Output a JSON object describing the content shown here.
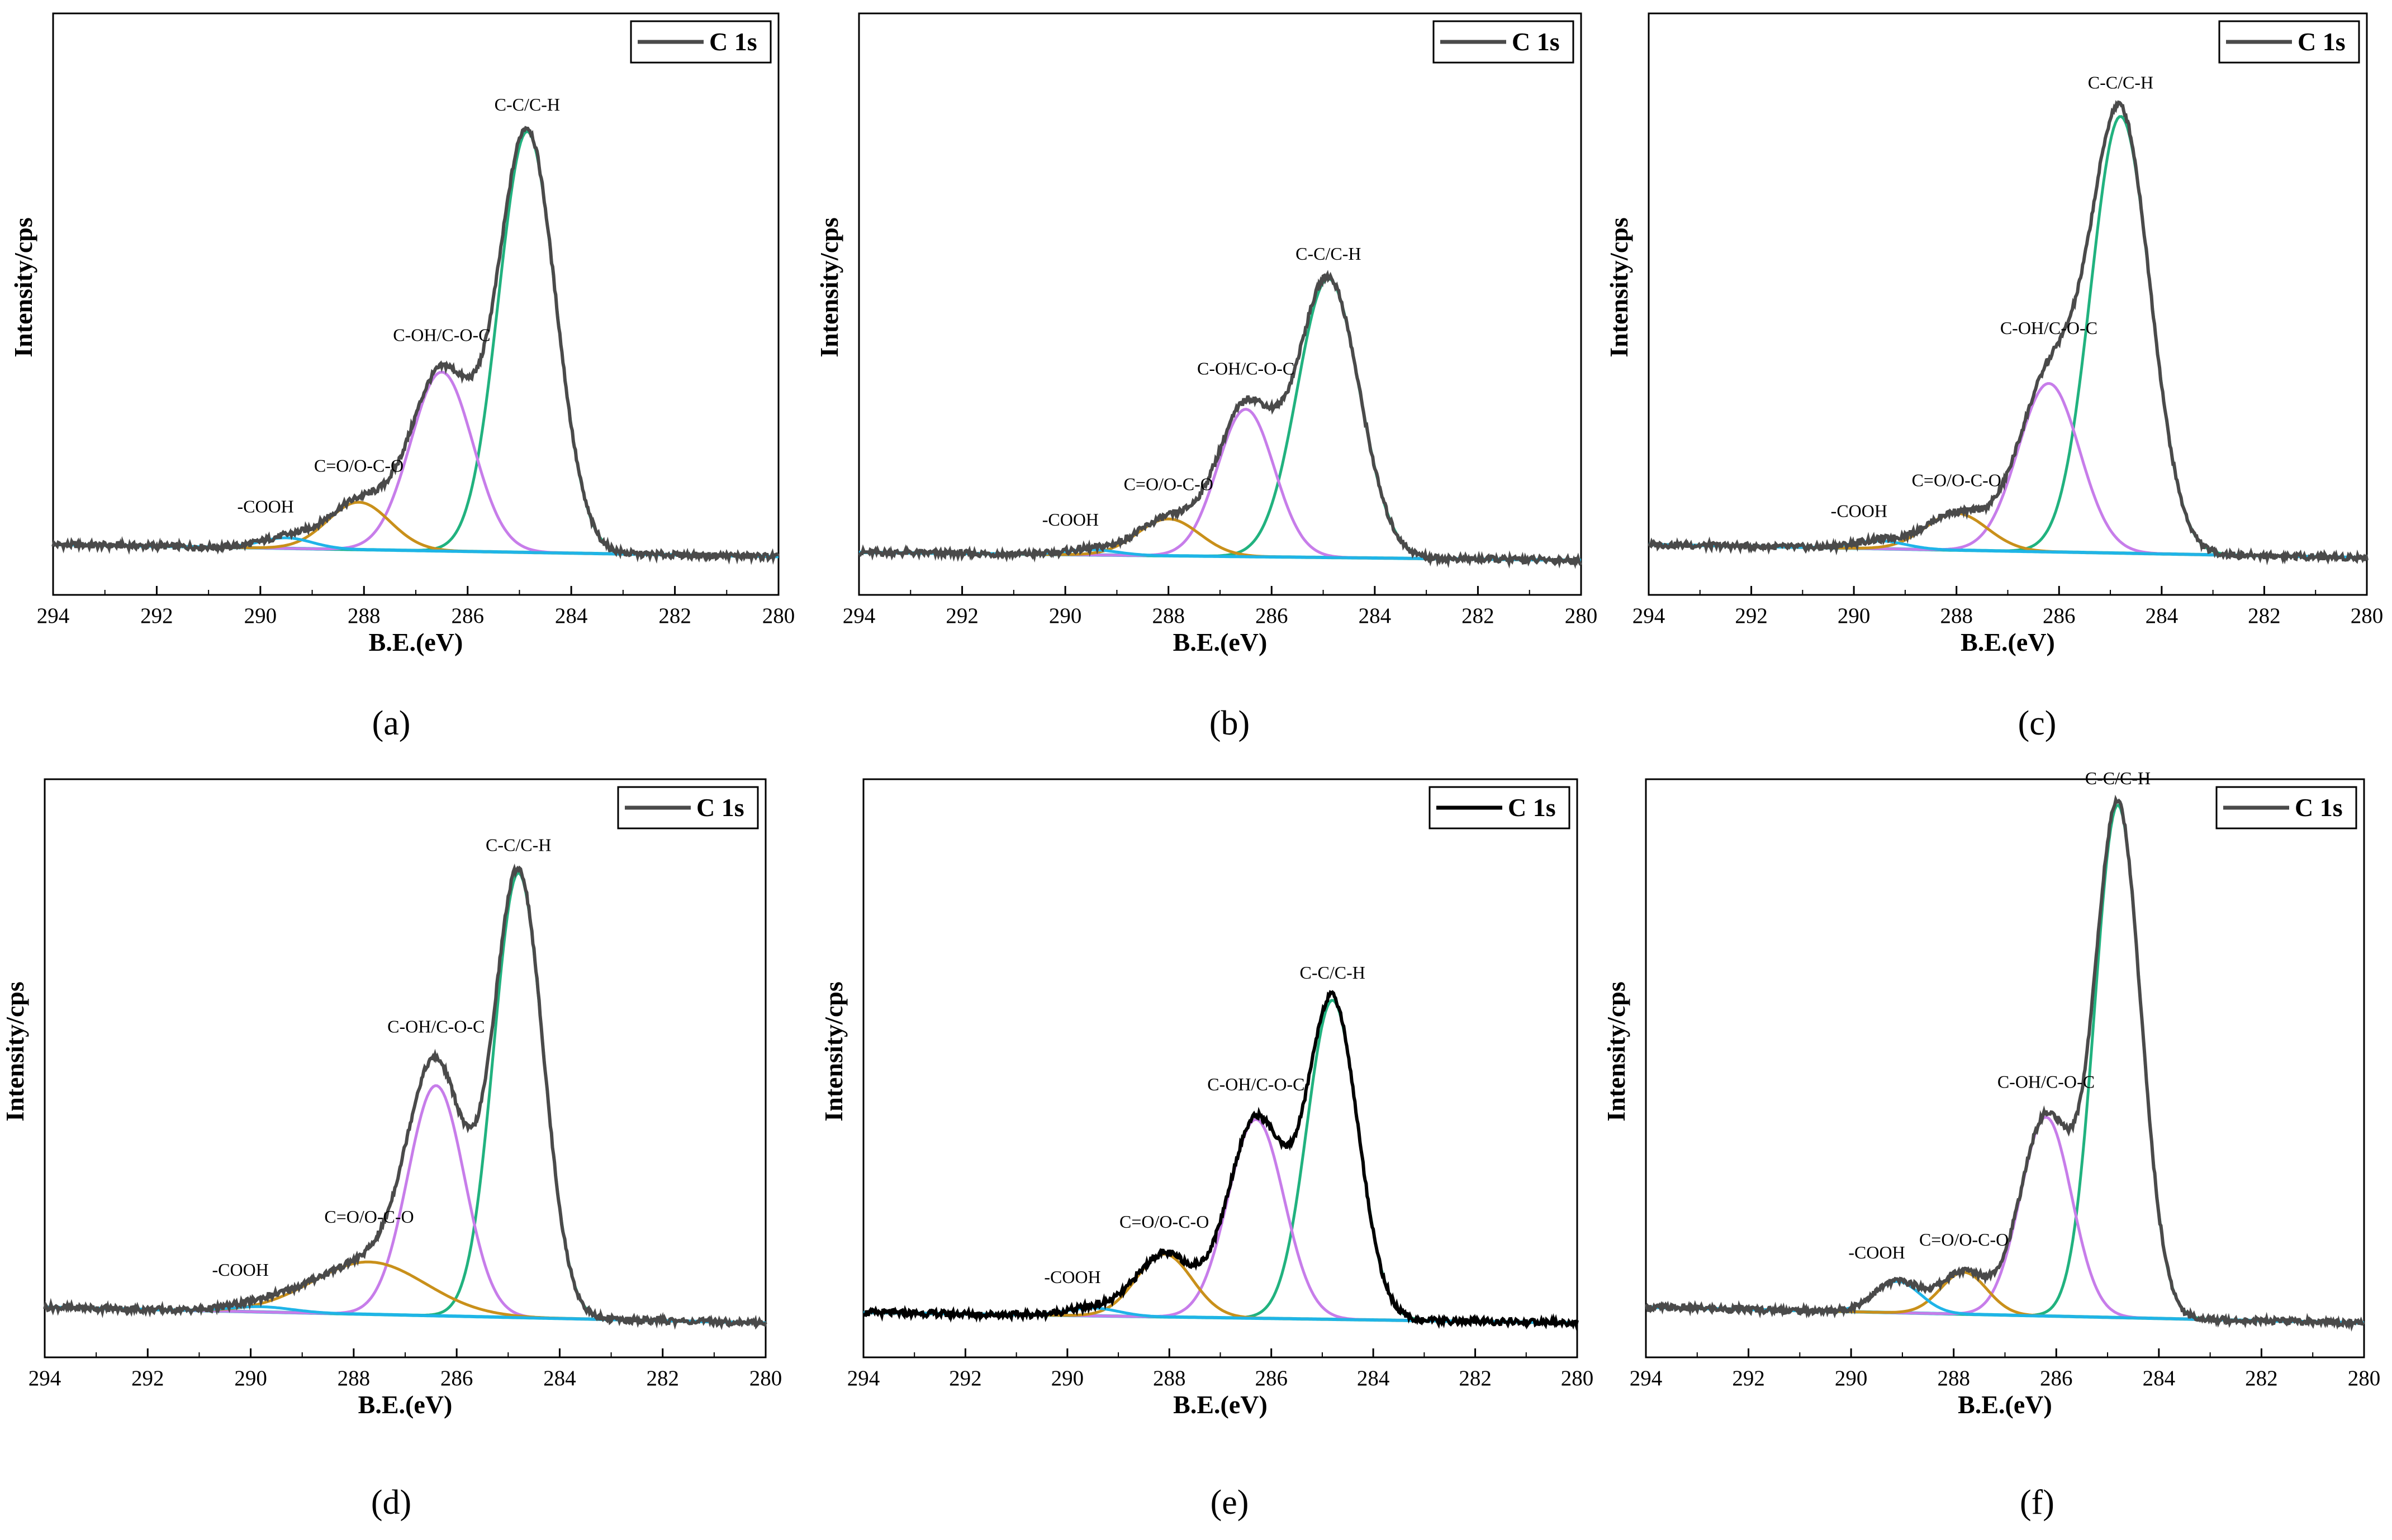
{
  "colors": {
    "envelope": "#4a4a4a",
    "envelope_e": "#000000",
    "cc": "#21b27f",
    "coh": "#c77dea",
    "coo": "#c9901a",
    "cooh": "#1fb4e8",
    "baseline": "#19c4dc"
  },
  "chart_data": [
    {
      "type": "line",
      "panel": "a",
      "caption_letter": "a",
      "xlabel": "B.E.(eV)",
      "ylabel": "Intensity/cps",
      "xlim": [
        294,
        280
      ],
      "ylim": [
        0,
        1
      ],
      "xticks": [
        "294",
        "292",
        "290",
        "288",
        "286",
        "284",
        "282",
        "280"
      ],
      "legend": "C 1s",
      "series": [
        {
          "name": "C-C/C-H",
          "center": 284.85,
          "height": 0.8,
          "sigma": 0.55,
          "label": "C-C/C-H"
        },
        {
          "name": "C-OH/C-O-C",
          "center": 286.5,
          "height": 0.34,
          "sigma": 0.6,
          "label": "C-OH/C-O-C"
        },
        {
          "name": "C=O/O-C-O",
          "center": 288.1,
          "height": 0.09,
          "sigma": 0.6,
          "label": "C=O/O-C-O"
        },
        {
          "name": "-COOH",
          "center": 289.5,
          "height": 0.02,
          "sigma": 0.5,
          "label": "-COOH"
        }
      ],
      "baseline": [
        0.035,
        0.012
      ]
    },
    {
      "type": "line",
      "panel": "b",
      "caption_letter": "b",
      "xlabel": "B.E.(eV)",
      "ylabel": "Intensity/cps",
      "xlim": [
        294,
        280
      ],
      "ylim": [
        0,
        1
      ],
      "xticks": [
        "294",
        "292",
        "290",
        "288",
        "286",
        "284",
        "282",
        "280"
      ],
      "legend": "C 1s",
      "series": [
        {
          "name": "C-C/C-H",
          "center": 284.9,
          "height": 0.53,
          "sigma": 0.6,
          "label": "C-C/C-H"
        },
        {
          "name": "C-OH/C-O-C",
          "center": 286.5,
          "height": 0.28,
          "sigma": 0.55,
          "label": "C-OH/C-O-C"
        },
        {
          "name": "C=O/O-C-O",
          "center": 288.0,
          "height": 0.07,
          "sigma": 0.6,
          "label": "C=O/O-C-O"
        },
        {
          "name": "-COOH",
          "center": 289.5,
          "height": 0.01,
          "sigma": 0.5,
          "label": "-COOH"
        }
      ],
      "baseline": [
        0.02,
        0.005
      ]
    },
    {
      "type": "line",
      "panel": "c",
      "caption_letter": "c",
      "xlabel": "B.E.(eV)",
      "ylabel": "Intensity/cps",
      "xlim": [
        294,
        280
      ],
      "ylim": [
        0,
        1
      ],
      "xticks": [
        "294",
        "292",
        "290",
        "288",
        "286",
        "284",
        "282",
        "280"
      ],
      "legend": "C 1s",
      "series": [
        {
          "name": "C-C/C-H",
          "center": 284.8,
          "height": 0.83,
          "sigma": 0.58,
          "label": "C-C/C-H"
        },
        {
          "name": "C-OH/C-O-C",
          "center": 286.2,
          "height": 0.32,
          "sigma": 0.6,
          "label": "C-OH/C-O-C"
        },
        {
          "name": "C=O/O-C-O",
          "center": 288.0,
          "height": 0.07,
          "sigma": 0.6,
          "label": "C=O/O-C-O"
        },
        {
          "name": "-COOH",
          "center": 289.5,
          "height": 0.015,
          "sigma": 0.5,
          "label": "-COOH"
        }
      ],
      "baseline": [
        0.035,
        0.01
      ]
    },
    {
      "type": "line",
      "panel": "d",
      "caption_letter": "d",
      "xlabel": "B.E.(eV)",
      "ylabel": "Intensity/cps",
      "xlim": [
        294,
        280
      ],
      "ylim": [
        0,
        1
      ],
      "xticks": [
        "294",
        "292",
        "290",
        "288",
        "286",
        "284",
        "282",
        "280"
      ],
      "legend": "C 1s",
      "series": [
        {
          "name": "C-C/C-H",
          "center": 284.8,
          "height": 0.85,
          "sigma": 0.48,
          "label": "C-C/C-H"
        },
        {
          "name": "C-OH/C-O-C",
          "center": 286.4,
          "height": 0.44,
          "sigma": 0.55,
          "label": "C-OH/C-O-C"
        },
        {
          "name": "C=O/O-C-O",
          "center": 287.7,
          "height": 0.1,
          "sigma": 1.1,
          "label": "C=O/O-C-O"
        },
        {
          "name": "-COOH",
          "center": 289.8,
          "height": 0.01,
          "sigma": 0.6,
          "label": "-COOH"
        }
      ],
      "baseline": [
        0.035,
        0.005
      ]
    },
    {
      "type": "line",
      "panel": "e",
      "caption_letter": "e",
      "xlabel": "B.E.(eV)",
      "ylabel": "Intensity/cps",
      "xlim": [
        294,
        280
      ],
      "ylim": [
        0,
        1
      ],
      "xticks": [
        "294",
        "292",
        "290",
        "288",
        "286",
        "284",
        "282",
        "280"
      ],
      "legend": "C 1s",
      "series": [
        {
          "name": "C-C/C-H",
          "center": 284.8,
          "height": 0.61,
          "sigma": 0.5,
          "label": "C-C/C-H"
        },
        {
          "name": "C-OH/C-O-C",
          "center": 286.3,
          "height": 0.38,
          "sigma": 0.55,
          "label": "C-OH/C-O-C"
        },
        {
          "name": "C=O/O-C-O",
          "center": 288.1,
          "height": 0.12,
          "sigma": 0.55,
          "label": "C=O/O-C-O"
        },
        {
          "name": "-COOH",
          "center": 289.5,
          "height": 0.015,
          "sigma": 0.5,
          "label": "-COOH"
        }
      ],
      "baseline": [
        0.025,
        0.005
      ]
    },
    {
      "type": "line",
      "panel": "f",
      "caption_letter": "f",
      "xlabel": "B.E.(eV)",
      "ylabel": "Intensity/cps",
      "xlim": [
        294,
        280
      ],
      "ylim": [
        0,
        1
      ],
      "xticks": [
        "294",
        "292",
        "290",
        "288",
        "286",
        "284",
        "282",
        "280"
      ],
      "legend": "C 1s",
      "series": [
        {
          "name": "C-C/C-H",
          "center": 284.8,
          "height": 0.98,
          "sigma": 0.45,
          "label": "C-C/C-H"
        },
        {
          "name": "C-OH/C-O-C",
          "center": 286.2,
          "height": 0.38,
          "sigma": 0.5,
          "label": "C-OH/C-O-C"
        },
        {
          "name": "C=O/O-C-O",
          "center": 287.8,
          "height": 0.08,
          "sigma": 0.45,
          "label": "C=O/O-C-O"
        },
        {
          "name": "-COOH",
          "center": 289.1,
          "height": 0.06,
          "sigma": 0.45,
          "label": "-COOH"
        }
      ],
      "baseline": [
        0.035,
        0.005
      ]
    }
  ]
}
